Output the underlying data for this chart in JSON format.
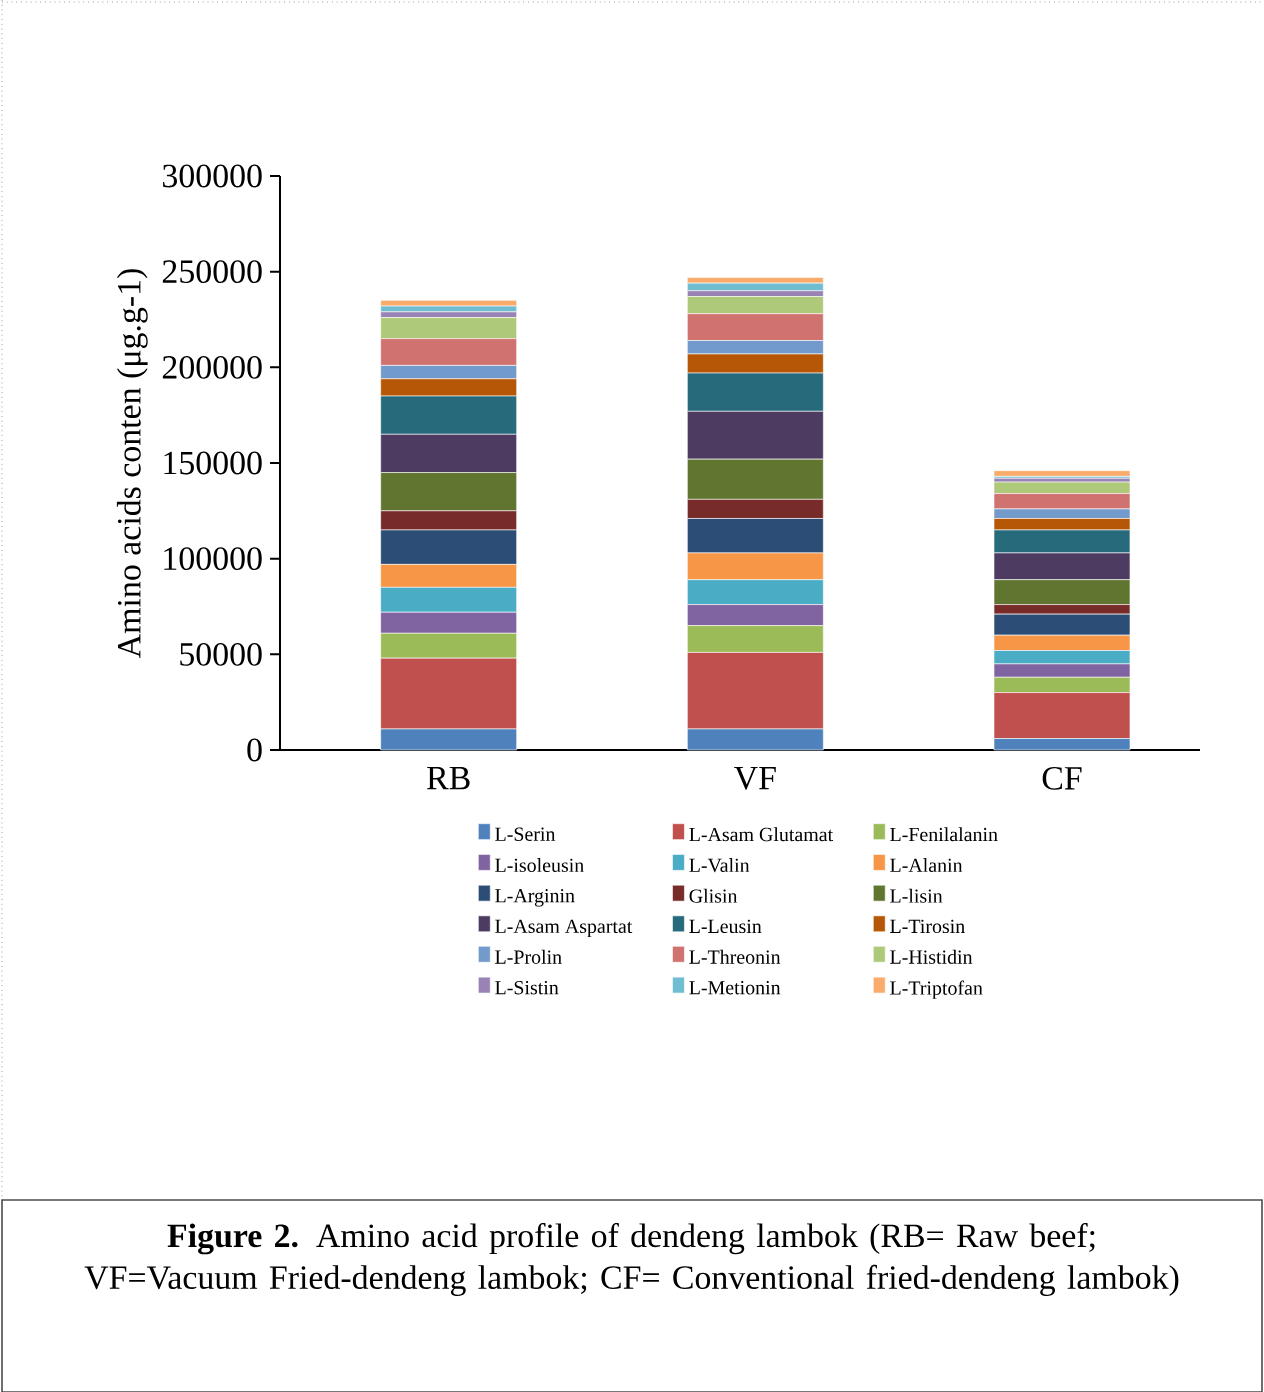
{
  "chart_data": {
    "type": "bar",
    "stacked": true,
    "ylabel": "Amino acids conten (μg.g-1)",
    "categories": [
      "RB",
      "VF",
      "CF"
    ],
    "ylim": [
      0,
      300000
    ],
    "yticks": [
      0,
      50000,
      100000,
      150000,
      200000,
      250000,
      300000
    ],
    "legend": "bottom",
    "grid": false,
    "annotations": [
      "**Figure 2.** Amino acid profile of dendeng lambok (RB= Raw beef; VF=Vacuum Fried-dendeng lambok; CF= Conventional fried-dendeng lambok)"
    ],
    "series": [
      {
        "name": "L-Serin",
        "color": "#4f81bd",
        "values": [
          11000,
          11000,
          6000
        ]
      },
      {
        "name": "L-Asam Glutamat",
        "color": "#c0504d",
        "values": [
          37000,
          40000,
          24000
        ]
      },
      {
        "name": "L-Fenilalanin",
        "color": "#9bbb59",
        "values": [
          13000,
          14000,
          8000
        ]
      },
      {
        "name": "L-isoleusin",
        "color": "#8064a2",
        "values": [
          11000,
          11000,
          7000
        ]
      },
      {
        "name": "L-Valin",
        "color": "#4bacc6",
        "values": [
          13000,
          13000,
          7000
        ]
      },
      {
        "name": "L-Alanin",
        "color": "#f79646",
        "values": [
          12000,
          14000,
          8000
        ]
      },
      {
        "name": "L-Arginin",
        "color": "#2c4d75",
        "values": [
          18000,
          18000,
          11000
        ]
      },
      {
        "name": "Glisin",
        "color": "#772c2a",
        "values": [
          10000,
          10000,
          5000
        ]
      },
      {
        "name": "L-lisin",
        "color": "#5f7530",
        "values": [
          20000,
          21000,
          13000
        ]
      },
      {
        "name": "L-Asam Aspartat",
        "color": "#4d3b62",
        "values": [
          20000,
          25000,
          14000
        ]
      },
      {
        "name": "L-Leusin",
        "color": "#276a7c",
        "values": [
          20000,
          20000,
          12000
        ]
      },
      {
        "name": "L-Tirosin",
        "color": "#b65708",
        "values": [
          9000,
          10000,
          6000
        ]
      },
      {
        "name": "L-Prolin",
        "color": "#729aca",
        "values": [
          7000,
          7000,
          5000
        ]
      },
      {
        "name": "L-Threonin",
        "color": "#d07270",
        "values": [
          14000,
          14000,
          8000
        ]
      },
      {
        "name": "L-Histidin",
        "color": "#afc97a",
        "values": [
          11000,
          9000,
          6000
        ]
      },
      {
        "name": "L-Sistin",
        "color": "#9983b5",
        "values": [
          3000,
          3000,
          2000
        ]
      },
      {
        "name": "L-Metionin",
        "color": "#6fbdd1",
        "values": [
          3000,
          4000,
          1000
        ]
      },
      {
        "name": "L-Triptofan",
        "color": "#f9ab6b",
        "values": [
          3000,
          3000,
          3000
        ]
      }
    ]
  }
}
